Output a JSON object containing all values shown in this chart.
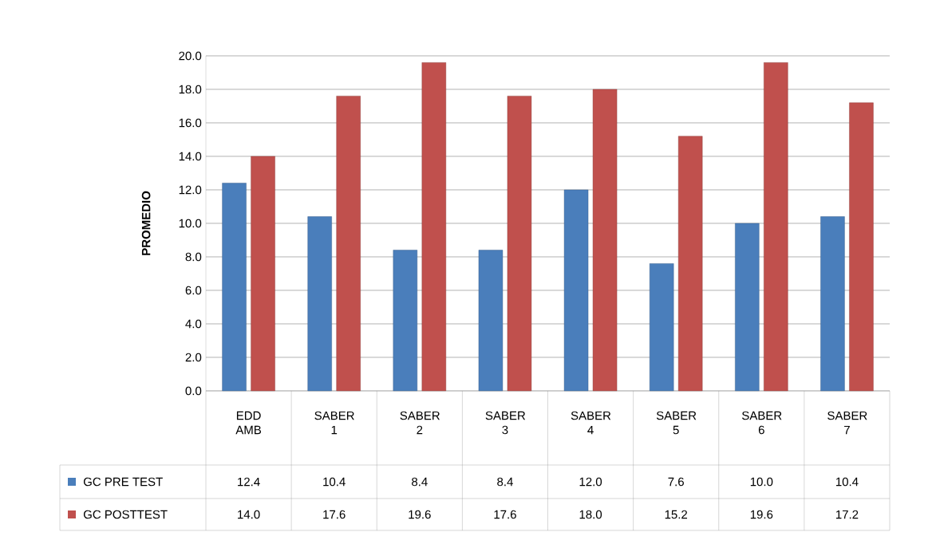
{
  "chart_data": {
    "type": "bar",
    "ylabel": "PROMEDIO",
    "categories": [
      "EDD AMB",
      "SABER 1",
      "SABER 2",
      "SABER 3",
      "SABER 4",
      "SABER 5",
      "SABER 6",
      "SABER 7"
    ],
    "series": [
      {
        "name": "GC PRE TEST",
        "color": "#4a7ebb",
        "values": [
          12.4,
          10.4,
          8.4,
          8.4,
          12.0,
          7.6,
          10.0,
          10.4
        ],
        "value_labels": [
          "12.4",
          "10.4",
          "8.4",
          "8.4",
          "12.0",
          "7.6",
          "10.0",
          "10.4"
        ]
      },
      {
        "name": "GC POSTTEST",
        "color": "#c0504d",
        "values": [
          14.0,
          17.6,
          19.6,
          17.6,
          18.0,
          15.2,
          19.6,
          17.2
        ],
        "value_labels": [
          "14.0",
          "17.6",
          "19.6",
          "17.6",
          "18.0",
          "15.2",
          "19.6",
          "17.2"
        ]
      }
    ],
    "ylim": [
      0,
      20
    ],
    "yticks": [
      {
        "value": 0,
        "label": "0.0"
      },
      {
        "value": 2,
        "label": "2.0"
      },
      {
        "value": 4,
        "label": "4.0"
      },
      {
        "value": 6,
        "label": "6.0"
      },
      {
        "value": 8,
        "label": "8.0"
      },
      {
        "value": 10,
        "label": "10.0"
      },
      {
        "value": 12,
        "label": "12.0"
      },
      {
        "value": 14,
        "label": "14.0"
      },
      {
        "value": 16,
        "label": "16.0"
      },
      {
        "value": 18,
        "label": "18.0"
      },
      {
        "value": 20,
        "label": "20.0"
      }
    ],
    "grid": "y",
    "legend": "bottom left"
  }
}
